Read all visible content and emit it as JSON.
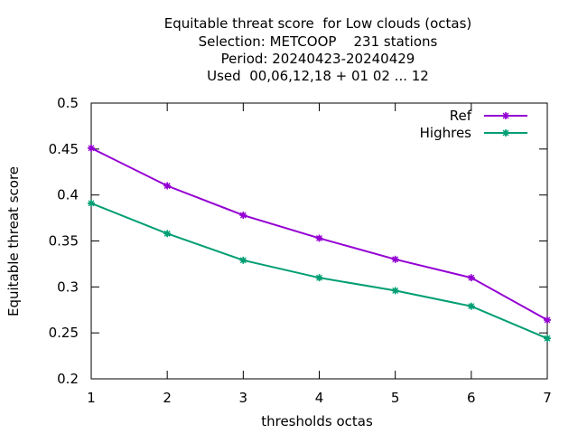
{
  "chart_data": {
    "type": "line",
    "title_lines": [
      "Equitable threat score  for Low clouds (octas)",
      "Selection: METCOOP    231 stations",
      "Period: 20240423-20240429",
      "Used  00,06,12,18 + 01 02 ... 12"
    ],
    "xlabel": "thresholds octas",
    "ylabel": "Equitable threat score",
    "x": [
      1,
      2,
      3,
      4,
      5,
      6,
      7
    ],
    "xlim": [
      1,
      7
    ],
    "ylim": [
      0.2,
      0.5
    ],
    "xticks": [
      "1",
      "2",
      "3",
      "4",
      "5",
      "6",
      "7"
    ],
    "yticks": [
      "0.2",
      "0.25",
      "0.3",
      "0.35",
      "0.4",
      "0.45",
      "0.5"
    ],
    "grid": false,
    "legend_position": "top-right",
    "series": [
      {
        "name": "Ref",
        "color": "#9400d3",
        "values": [
          0.451,
          0.41,
          0.378,
          0.353,
          0.33,
          0.31,
          0.264
        ]
      },
      {
        "name": "Highres",
        "color": "#009e73",
        "values": [
          0.391,
          0.358,
          0.329,
          0.31,
          0.296,
          0.279,
          0.244
        ]
      }
    ]
  }
}
